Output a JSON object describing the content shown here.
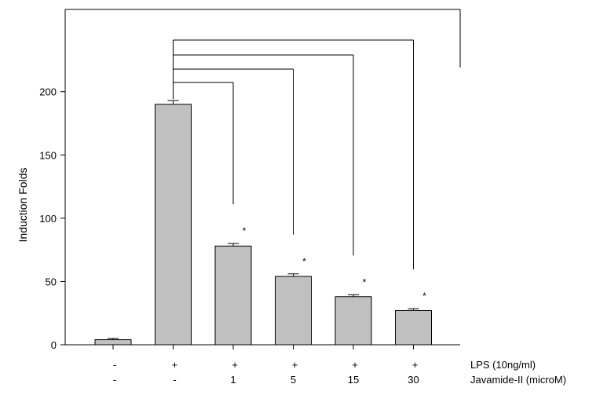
{
  "chart_data": {
    "type": "bar",
    "ylabel": "Induction Folds",
    "ylim": [
      0,
      265
    ],
    "yticks": [
      0,
      50,
      100,
      150,
      200
    ],
    "grid": false,
    "bar_color": "#c0c0c0",
    "values": [
      4,
      190,
      78,
      54,
      38,
      27
    ],
    "errors": [
      1,
      3,
      2,
      2,
      1.5,
      1.5
    ],
    "significance": [
      "",
      "",
      "*",
      "*",
      "*",
      "*"
    ],
    "comparisons": [
      {
        "from": 1,
        "to": 2
      },
      {
        "from": 1,
        "to": 3
      },
      {
        "from": 1,
        "to": 4
      },
      {
        "from": 1,
        "to": 5
      }
    ],
    "conditions": [
      {
        "name": "LPS (10ng/ml)",
        "values": [
          "-",
          "+",
          "+",
          "+",
          "+",
          "+"
        ]
      },
      {
        "name": "Javamide-II (microM)",
        "values": [
          "-",
          "-",
          "1",
          "5",
          "15",
          "30"
        ]
      }
    ]
  }
}
